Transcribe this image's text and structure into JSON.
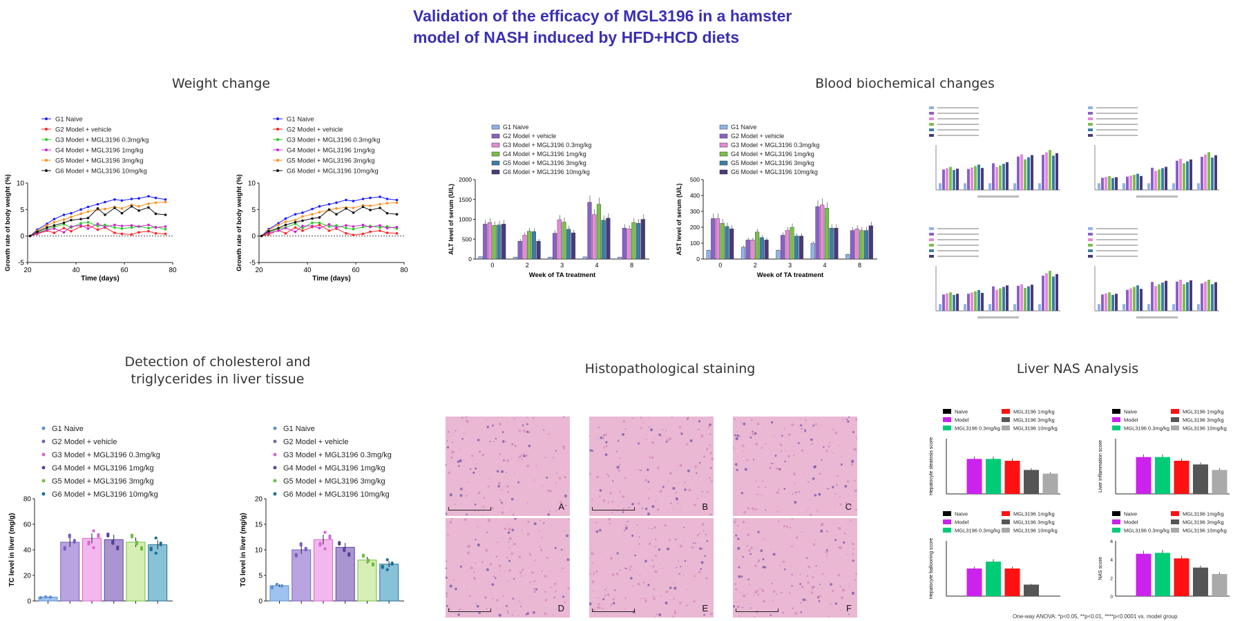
{
  "page": {
    "title_line1": "Validation of the efficacy of MGL3196 in a hamster",
    "title_line2": "model of NASH induced by HFD+HCD diets"
  },
  "sections": {
    "weight": "Weight change",
    "blood": "Blood biochemical changes",
    "chol_line1": "Detection of cholesterol and",
    "chol_line2": "triglycerides in liver tissue",
    "histo": "Histopathological staining",
    "nas": "Liver NAS Analysis"
  },
  "colors": {
    "title": "#3a2fb3",
    "weight": [
      "#1a1aff",
      "#ff2020",
      "#22cc22",
      "#cc22cc",
      "#ff8c1a",
      "#111111"
    ],
    "bars6": [
      "#9ec3f0",
      "#b9a3e0",
      "#f2b8ee",
      "#a996d1",
      "#d6efb4",
      "#88c2d8"
    ],
    "bars6_edge": [
      "#5b8fd6",
      "#7a5fc0",
      "#d866d0",
      "#5a3f9e",
      "#6fbf40",
      "#1f6f96"
    ],
    "biochem": [
      "#8fb2e8",
      "#8b60c8",
      "#e58ad8",
      "#79c04a",
      "#3b7ea8",
      "#4a3a7a"
    ],
    "nas": [
      "#000000",
      "#cc22ee",
      "#00cc77",
      "#ff1111",
      "#555555",
      "#aaaaaa"
    ],
    "stain": "#eab8d3"
  },
  "icons": {
    "weight_markers": "circle-marker",
    "histo_scale": "scale-bar"
  },
  "histology": {
    "panels": [
      "A",
      "B",
      "C",
      "D",
      "E",
      "F"
    ]
  },
  "footnote": "One-way ANOVA: *p<0.05, **p<0.01, ****p<0.0001 vs. model group",
  "chart_data": [
    {
      "id": "weight1",
      "type": "line",
      "xlabel": "Time (days)",
      "ylabel": "Growth rate of body weight (%)",
      "xlim": [
        20,
        80
      ],
      "ylim": [
        -5,
        10
      ],
      "xticks": [
        20,
        40,
        60,
        80
      ],
      "yticks": [
        -5,
        0,
        5,
        10
      ],
      "x": [
        21,
        24,
        28,
        31,
        35,
        38,
        42,
        45,
        49,
        52,
        56,
        59,
        63,
        66,
        70,
        73,
        77
      ],
      "series": [
        {
          "name": "G1 Naive",
          "values": [
            0,
            1.2,
            2.3,
            3.2,
            4.0,
            4.3,
            5.0,
            5.5,
            6.0,
            6.4,
            6.9,
            6.7,
            7.0,
            7.1,
            7.5,
            7.2,
            6.9
          ]
        },
        {
          "name": "G2 Model + vehicle",
          "values": [
            0,
            0.4,
            1.0,
            0.6,
            1.5,
            0.9,
            1.8,
            2.0,
            1.2,
            1.6,
            0.6,
            0.4,
            0.3,
            0.7,
            0.9,
            0.5,
            0.4
          ]
        },
        {
          "name": "G3 Model + MGL3196 0.3mg/kg",
          "values": [
            0,
            0.6,
            1.3,
            1.7,
            2.2,
            1.6,
            2.4,
            2.6,
            1.9,
            2.1,
            1.6,
            1.4,
            1.6,
            1.8,
            1.5,
            1.7,
            1.3
          ]
        },
        {
          "name": "G4 Model + MGL3196 1mg/kg",
          "values": [
            0,
            0.5,
            1.1,
            1.4,
            0.7,
            1.8,
            2.0,
            1.4,
            2.3,
            1.7,
            2.1,
            1.9,
            2.0,
            1.8,
            2.1,
            1.6,
            1.8
          ]
        },
        {
          "name": "G5 Model + MGL3196 3mg/kg",
          "values": [
            0,
            1.0,
            2.0,
            2.6,
            3.1,
            3.6,
            4.2,
            4.6,
            5.0,
            5.1,
            5.5,
            5.2,
            5.9,
            5.6,
            6.1,
            6.3,
            6.4
          ]
        },
        {
          "name": "G6 Model + MGL3196 10mg/kg",
          "values": [
            0,
            0.8,
            1.6,
            2.0,
            2.5,
            3.0,
            3.2,
            3.4,
            5.2,
            4.0,
            5.3,
            4.3,
            5.6,
            4.8,
            5.4,
            4.2,
            4.0
          ]
        }
      ]
    },
    {
      "id": "weight2",
      "type": "line",
      "xlabel": "Time (days)",
      "ylabel": "Growth rate of body weight (%)",
      "xlim": [
        20,
        80
      ],
      "ylim": [
        -5,
        10
      ],
      "xticks": [
        20,
        40,
        60,
        80
      ],
      "yticks": [
        -5,
        0,
        5,
        10
      ],
      "x": [
        21,
        24,
        28,
        31,
        35,
        38,
        42,
        45,
        49,
        52,
        56,
        59,
        63,
        66,
        70,
        73,
        77
      ],
      "series": [
        {
          "name": "G1 Naive",
          "values": [
            0,
            1.3,
            2.4,
            3.3,
            4.1,
            4.4,
            5.1,
            5.6,
            6.0,
            6.3,
            6.8,
            6.6,
            7.0,
            7.2,
            7.4,
            7.0,
            6.8
          ]
        },
        {
          "name": "G2 Model + vehicle",
          "values": [
            0,
            0.3,
            1.1,
            0.5,
            1.6,
            1.0,
            1.7,
            2.1,
            1.0,
            1.4,
            0.5,
            0.2,
            0.4,
            0.8,
            1.0,
            0.6,
            0.5
          ]
        },
        {
          "name": "G3 Model + MGL3196 0.3mg/kg",
          "values": [
            0,
            0.7,
            1.4,
            1.6,
            2.3,
            1.5,
            2.5,
            2.5,
            1.8,
            2.0,
            1.5,
            1.3,
            1.7,
            1.9,
            1.6,
            1.8,
            1.4
          ]
        },
        {
          "name": "G4 Model + MGL3196 1mg/kg",
          "values": [
            0,
            0.6,
            1.0,
            1.5,
            0.8,
            1.9,
            1.9,
            1.5,
            2.2,
            1.6,
            2.0,
            1.8,
            2.1,
            1.7,
            2.0,
            1.5,
            1.7
          ]
        },
        {
          "name": "G5 Model + MGL3196 3mg/kg",
          "values": [
            0,
            1.1,
            2.1,
            2.7,
            3.0,
            3.7,
            4.1,
            4.5,
            4.9,
            5.2,
            5.4,
            5.3,
            5.8,
            5.7,
            6.0,
            6.2,
            6.3
          ]
        },
        {
          "name": "G6 Model + MGL3196 10mg/kg",
          "values": [
            0,
            0.9,
            1.5,
            2.1,
            2.6,
            2.9,
            3.3,
            3.5,
            5.0,
            4.1,
            5.2,
            4.4,
            5.5,
            4.9,
            5.3,
            4.3,
            4.1
          ]
        }
      ]
    },
    {
      "id": "alt",
      "type": "bar",
      "xlabel": "Week of TA treatment",
      "ylabel": "ALT level of serum (U/L)",
      "categories": [
        "0",
        "2",
        "3",
        "4",
        "8"
      ],
      "ylim": [
        0,
        2000
      ],
      "yticks": [
        0,
        500,
        1000,
        1500,
        2000
      ],
      "series": [
        {
          "name": "G1 Naive",
          "values": [
            60,
            50,
            50,
            55,
            50
          ]
        },
        {
          "name": "G2 Model + vehicle",
          "values": [
            880,
            450,
            650,
            1430,
            780
          ]
        },
        {
          "name": "G3 Model + MGL3196 0.3mg/kg",
          "values": [
            920,
            600,
            990,
            1120,
            760
          ]
        },
        {
          "name": "G4 Model + MGL3196 1mg/kg",
          "values": [
            850,
            700,
            930,
            1380,
            920
          ]
        },
        {
          "name": "G5 Model + MGL3196 3mg/kg",
          "values": [
            860,
            690,
            750,
            980,
            900
          ]
        },
        {
          "name": "G6 Model + MGL3196 10mg/kg",
          "values": [
            880,
            450,
            660,
            1030,
            1000
          ]
        }
      ]
    },
    {
      "id": "ast",
      "type": "bar",
      "xlabel": "Week of TA treatment",
      "ylabel": "AST level of serum (U/L)",
      "categories": [
        "0",
        "2",
        "3",
        "4",
        "8"
      ],
      "ylim": [
        0,
        500
      ],
      "yticks": [
        0,
        100,
        200,
        300,
        400,
        500
      ],
      "series": [
        {
          "name": "G1 Naive",
          "values": [
            55,
            75,
            55,
            100,
            30
          ]
        },
        {
          "name": "G2 Model + vehicle",
          "values": [
            255,
            120,
            150,
            330,
            180
          ]
        },
        {
          "name": "G3 Model + MGL3196 0.3mg/kg",
          "values": [
            255,
            120,
            180,
            340,
            190
          ]
        },
        {
          "name": "G4 Model + MGL3196 1mg/kg",
          "values": [
            225,
            170,
            200,
            320,
            180
          ]
        },
        {
          "name": "G5 Model + MGL3196 3mg/kg",
          "values": [
            205,
            135,
            145,
            195,
            180
          ]
        },
        {
          "name": "G6 Model + MGL3196 10mg/kg",
          "values": [
            190,
            120,
            145,
            195,
            210
          ]
        }
      ]
    },
    {
      "id": "tc_liver",
      "type": "bar",
      "ylabel": "TC level in liver (mg/g)",
      "ylim": [
        0,
        80
      ],
      "yticks": [
        0,
        20,
        40,
        60,
        80
      ],
      "series": [
        {
          "name": "G1 Naive",
          "values": [
            3
          ]
        },
        {
          "name": "G2 Model + vehicle",
          "values": [
            46
          ]
        },
        {
          "name": "G3 Model + MGL3196 0.3mg/kg",
          "values": [
            49
          ]
        },
        {
          "name": "G4 Model + MGL3196 1mg/kg",
          "values": [
            48
          ]
        },
        {
          "name": "G5 Model + MGL3196 3mg/kg",
          "values": [
            46
          ]
        },
        {
          "name": "G6 Model + MGL3196 10mg/kg",
          "values": [
            44
          ]
        }
      ]
    },
    {
      "id": "tg_liver",
      "type": "bar",
      "ylabel": "TG level in liver (mg/g)",
      "ylim": [
        0,
        20
      ],
      "yticks": [
        0,
        5,
        10,
        15,
        20
      ],
      "series": [
        {
          "name": "G1 Naive",
          "values": [
            3
          ]
        },
        {
          "name": "G2 Model + vehicle",
          "values": [
            10
          ]
        },
        {
          "name": "G3 Model + MGL3196 0.3mg/kg",
          "values": [
            12
          ]
        },
        {
          "name": "G4 Model + MGL3196 1mg/kg",
          "values": [
            10.5
          ]
        },
        {
          "name": "G5 Model + MGL3196 3mg/kg",
          "values": [
            8
          ]
        },
        {
          "name": "G6 Model + MGL3196 10mg/kg",
          "values": [
            7.2
          ]
        }
      ]
    },
    {
      "id": "nas_steatosis",
      "type": "bar",
      "ylabel": "Hepatocyte steatosis score",
      "ylim": [
        0,
        3
      ],
      "series": [
        {
          "name": "Naive",
          "values": [
            0
          ]
        },
        {
          "name": "Model",
          "values": [
            1.9
          ]
        },
        {
          "name": "MGL3196 0.3mg/kg",
          "values": [
            1.9
          ]
        },
        {
          "name": "MGL3196 1mg/kg",
          "values": [
            1.8
          ]
        },
        {
          "name": "MGL3196 3mg/kg",
          "values": [
            1.3
          ]
        },
        {
          "name": "MGL3196 10mg/kg",
          "values": [
            1.1
          ]
        }
      ]
    },
    {
      "id": "nas_inflammation",
      "type": "bar",
      "ylabel": "Liver inflammation score",
      "ylim": [
        0,
        3
      ],
      "series": [
        {
          "name": "Naive",
          "values": [
            0
          ]
        },
        {
          "name": "Model",
          "values": [
            2.0
          ]
        },
        {
          "name": "MGL3196 0.3mg/kg",
          "values": [
            2.0
          ]
        },
        {
          "name": "MGL3196 1mg/kg",
          "values": [
            1.8
          ]
        },
        {
          "name": "MGL3196 3mg/kg",
          "values": [
            1.6
          ]
        },
        {
          "name": "MGL3196 10mg/kg",
          "values": [
            1.3
          ]
        }
      ]
    },
    {
      "id": "nas_ballooning",
      "type": "bar",
      "ylabel": "Hepatocyte ballooning score",
      "ylim": [
        0,
        1.2
      ],
      "series": [
        {
          "name": "Naive",
          "values": [
            0
          ]
        },
        {
          "name": "Model",
          "values": [
            0.6
          ]
        },
        {
          "name": "MGL3196 0.3mg/kg",
          "values": [
            0.75
          ]
        },
        {
          "name": "MGL3196 1mg/kg",
          "values": [
            0.6
          ]
        },
        {
          "name": "MGL3196 3mg/kg",
          "values": [
            0.25
          ]
        },
        {
          "name": "MGL3196 10mg/kg",
          "values": [
            0
          ]
        }
      ]
    },
    {
      "id": "nas_score",
      "type": "bar",
      "ylabel": "NAS score",
      "ylim": [
        0,
        6
      ],
      "yticks": [
        0,
        2,
        4,
        6
      ],
      "series": [
        {
          "name": "Naive",
          "values": [
            0
          ]
        },
        {
          "name": "Model",
          "values": [
            4.6
          ]
        },
        {
          "name": "MGL3196 0.3mg/kg",
          "values": [
            4.7
          ]
        },
        {
          "name": "MGL3196 1mg/kg",
          "values": [
            4.1
          ]
        },
        {
          "name": "MGL3196 3mg/kg",
          "values": [
            3.1
          ]
        },
        {
          "name": "MGL3196 10mg/kg",
          "values": [
            2.4
          ]
        }
      ]
    }
  ]
}
